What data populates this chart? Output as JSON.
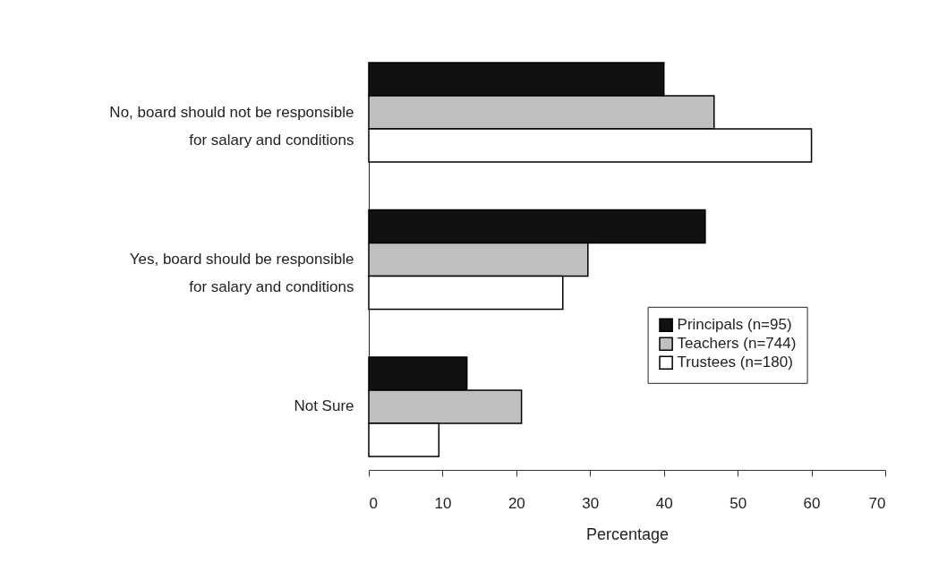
{
  "chart_data": {
    "type": "bar",
    "orientation": "horizontal",
    "xlabel": "Percentage",
    "categories": [
      "No, board should not be responsible\nfor salary and conditions",
      "Yes, board should be responsible\nfor salary and conditions",
      "Not Sure"
    ],
    "series": [
      {
        "name": "Principals (n=95)",
        "color": "#111111",
        "values": [
          40.0,
          45.6,
          13.3
        ]
      },
      {
        "name": "Teachers (n=744)",
        "color": "#bfbfbf",
        "values": [
          46.8,
          29.7,
          20.7
        ]
      },
      {
        "name": "Trustees (n=180)",
        "color": "#ffffff",
        "values": [
          60.0,
          26.3,
          9.5
        ]
      }
    ],
    "xlim": [
      0,
      70
    ],
    "xticks": [
      0,
      10,
      20,
      30,
      40,
      50,
      60,
      70
    ],
    "legend": "right",
    "grid": false
  }
}
